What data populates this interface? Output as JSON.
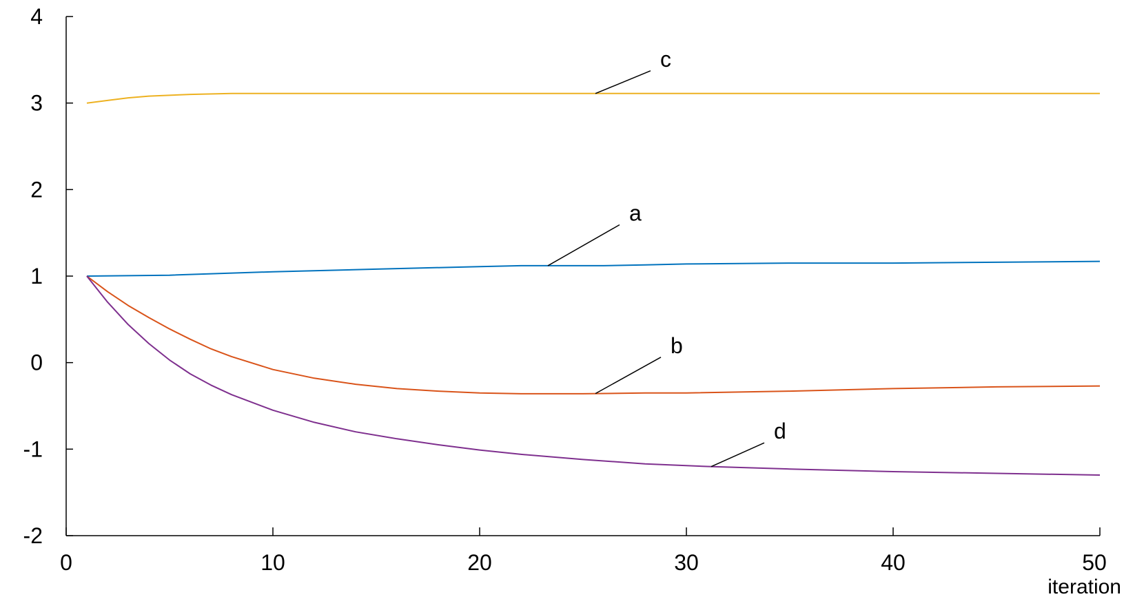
{
  "chart_data": {
    "type": "line",
    "title": "",
    "xlabel": "iteration",
    "ylabel": "",
    "xlim": [
      0,
      50
    ],
    "ylim": [
      -2,
      4
    ],
    "xticks": [
      0,
      10,
      20,
      30,
      40,
      50
    ],
    "xtick_labels": [
      "0",
      "10",
      "20",
      "30",
      "40",
      "50"
    ],
    "yticks": [
      -2,
      -1,
      0,
      1,
      2,
      3,
      4
    ],
    "ytick_labels": [
      "-2",
      "-1",
      "0",
      "1",
      "2",
      "3",
      "4"
    ],
    "grid": false,
    "legend": "none",
    "series": [
      {
        "name": "c",
        "color": "#EDB120",
        "x": [
          1,
          2,
          3,
          4,
          5,
          6,
          8,
          10,
          15,
          20,
          25,
          30,
          35,
          40,
          45,
          50
        ],
        "y": [
          3.0,
          3.03,
          3.06,
          3.08,
          3.09,
          3.1,
          3.11,
          3.11,
          3.11,
          3.11,
          3.11,
          3.11,
          3.11,
          3.11,
          3.11,
          3.11
        ],
        "label_at": [
          29,
          3.5
        ],
        "leader_to": 25.6
      },
      {
        "name": "a",
        "color": "#0072BD",
        "x": [
          1,
          5,
          10,
          15,
          20,
          22,
          24,
          26,
          28,
          30,
          35,
          40,
          45,
          50
        ],
        "y": [
          1.0,
          1.01,
          1.05,
          1.08,
          1.11,
          1.12,
          1.12,
          1.12,
          1.13,
          1.14,
          1.15,
          1.15,
          1.16,
          1.17
        ],
        "label_at": [
          27.5,
          1.72
        ],
        "leader_to": 23.3
      },
      {
        "name": "b",
        "color": "#D95319",
        "x": [
          1,
          2,
          3,
          4,
          5,
          6,
          7,
          8,
          10,
          12,
          14,
          16,
          18,
          20,
          22,
          25,
          28,
          30,
          35,
          40,
          45,
          50
        ],
        "y": [
          1.0,
          0.82,
          0.66,
          0.52,
          0.39,
          0.27,
          0.16,
          0.07,
          -0.08,
          -0.18,
          -0.25,
          -0.3,
          -0.33,
          -0.35,
          -0.36,
          -0.36,
          -0.35,
          -0.35,
          -0.33,
          -0.3,
          -0.28,
          -0.27
        ],
        "label_at": [
          29.5,
          0.19
        ],
        "leader_to": 25.6
      },
      {
        "name": "d",
        "color": "#7E2F8E",
        "x": [
          1,
          2,
          3,
          4,
          5,
          6,
          7,
          8,
          10,
          12,
          14,
          16,
          18,
          20,
          22,
          25,
          28,
          31,
          35,
          40,
          45,
          50
        ],
        "y": [
          1.0,
          0.7,
          0.44,
          0.22,
          0.03,
          -0.13,
          -0.26,
          -0.37,
          -0.55,
          -0.69,
          -0.8,
          -0.88,
          -0.95,
          -1.01,
          -1.06,
          -1.12,
          -1.17,
          -1.2,
          -1.23,
          -1.26,
          -1.28,
          -1.3
        ],
        "label_at": [
          34.5,
          -0.8
        ],
        "leader_to": 31.2
      }
    ]
  }
}
